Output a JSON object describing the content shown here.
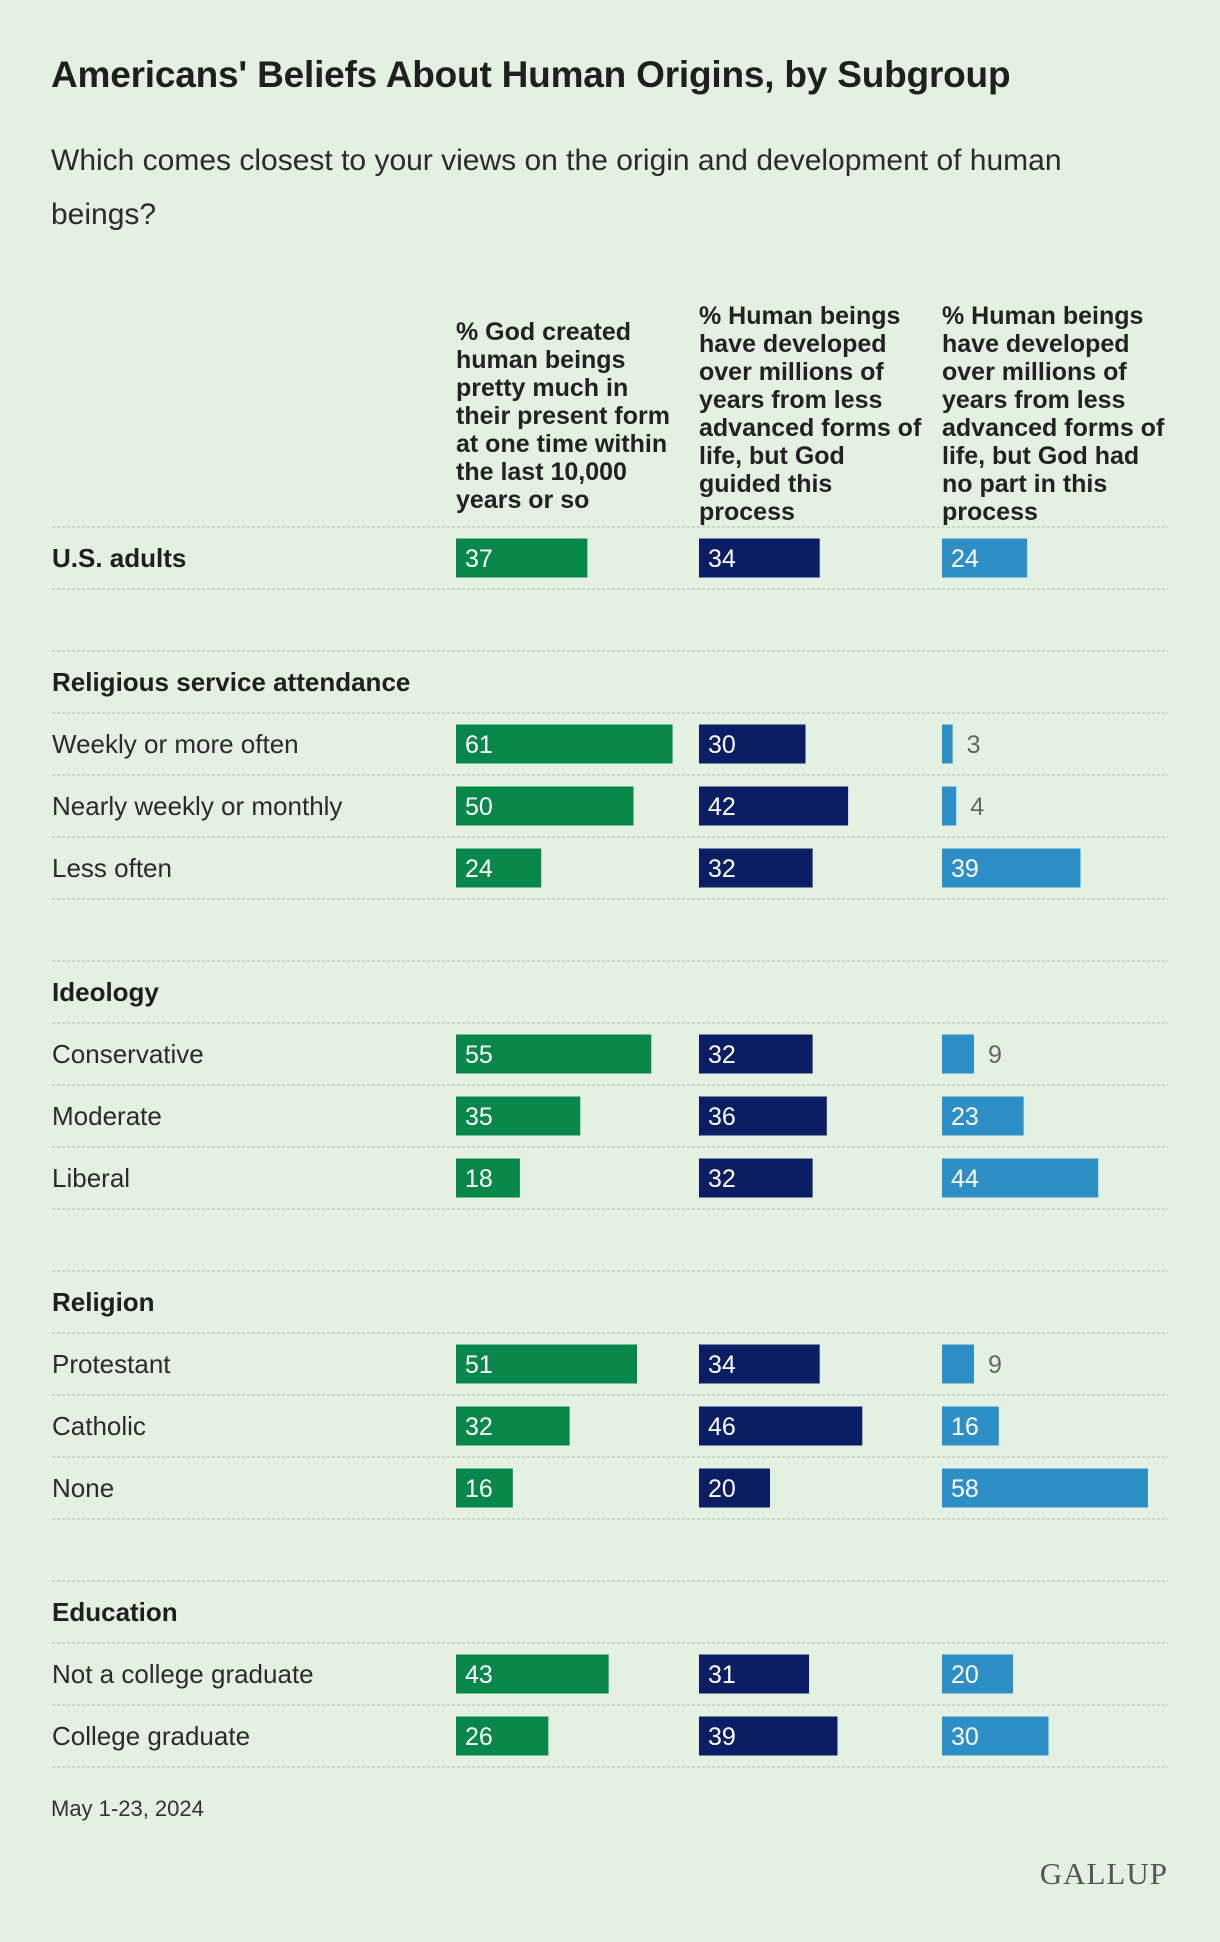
{
  "header": {
    "title": "Americans' Beliefs About Human Origins, by Subgroup",
    "subtitle": "Which comes closest to your views on the origin and development of human beings?"
  },
  "colors": {
    "background": "#e4f0e1",
    "col1": "#07884a",
    "col2": "#0b1e63",
    "col3": "#2e8fc6",
    "divider": "#c2cfc0"
  },
  "chart_data": {
    "type": "bar",
    "orientation": "horizontal",
    "series": [
      {
        "name": "% God created human beings pretty much in their present form at one time within the last 10,000 years or so"
      },
      {
        "name": "% Human beings have developed over millions of years from less advanced forms of life, but God guided this process"
      },
      {
        "name": "% Human beings have developed over millions of years from less advanced forms of life, but God had no part in this process"
      }
    ],
    "groups": [
      {
        "name": "",
        "rows": [
          {
            "label": "U.S. adults",
            "bold": true,
            "values": [
              37,
              34,
              24
            ]
          }
        ]
      },
      {
        "name": "Religious service attendance",
        "rows": [
          {
            "label": "Weekly or more often",
            "values": [
              61,
              30,
              3
            ]
          },
          {
            "label": "Nearly weekly or monthly",
            "values": [
              50,
              42,
              4
            ]
          },
          {
            "label": "Less often",
            "values": [
              24,
              32,
              39
            ]
          }
        ]
      },
      {
        "name": "Ideology",
        "rows": [
          {
            "label": "Conservative",
            "values": [
              55,
              32,
              9
            ]
          },
          {
            "label": "Moderate",
            "values": [
              35,
              36,
              23
            ]
          },
          {
            "label": "Liberal",
            "values": [
              18,
              32,
              44
            ]
          }
        ]
      },
      {
        "name": "Religion",
        "rows": [
          {
            "label": "Protestant",
            "values": [
              51,
              34,
              9
            ]
          },
          {
            "label": "Catholic",
            "values": [
              32,
              46,
              16
            ]
          },
          {
            "label": "None",
            "values": [
              16,
              20,
              58
            ]
          }
        ]
      },
      {
        "name": "Education",
        "rows": [
          {
            "label": "Not a college graduate",
            "values": [
              43,
              31,
              20
            ]
          },
          {
            "label": "College graduate",
            "values": [
              26,
              39,
              30
            ]
          }
        ]
      }
    ]
  },
  "footer": {
    "note": "May 1-23, 2024",
    "brand": "GALLUP"
  }
}
